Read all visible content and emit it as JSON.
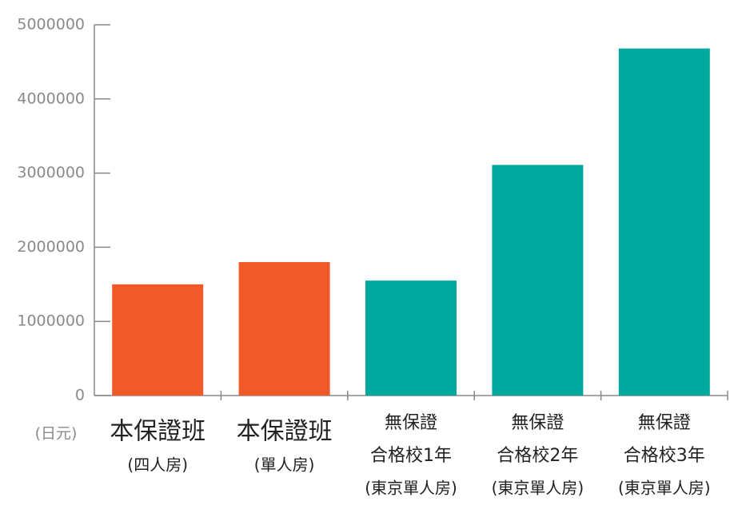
{
  "chart_data": {
    "type": "bar",
    "y_unit_label": "(日元)",
    "categories": [
      [
        "本保證班",
        "(四人房)"
      ],
      [
        "本保證班",
        "(單人房)"
      ],
      [
        "無保證",
        "合格校1年",
        "(東京單人房)"
      ],
      [
        "無保證",
        "合格校2年",
        "(東京單人房)"
      ],
      [
        "無保證",
        "合格校3年",
        "(東京單人房)"
      ]
    ],
    "values": [
      1500000,
      1800000,
      1550000,
      3110000,
      4680000
    ],
    "colors": [
      "#f05a28",
      "#f05a28",
      "#00a99d",
      "#00a99d",
      "#00a99d"
    ],
    "ylim": [
      0,
      5000000
    ],
    "yticks": [
      0,
      1000000,
      2000000,
      3000000,
      4000000,
      5000000
    ]
  }
}
